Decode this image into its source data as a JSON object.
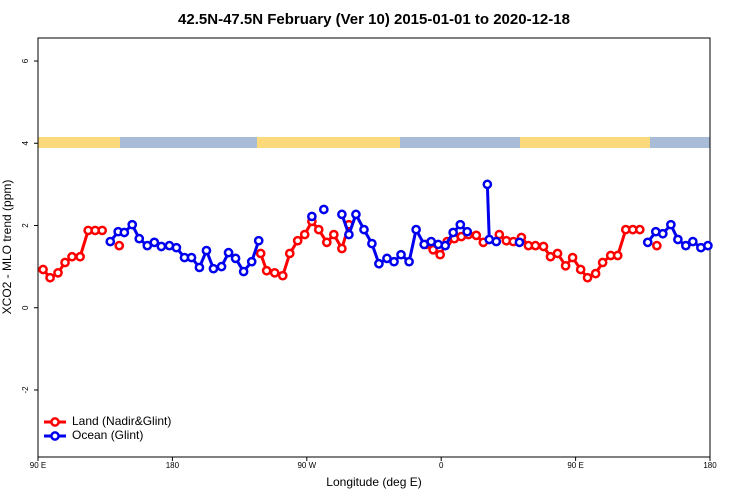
{
  "chart_data": {
    "type": "line",
    "title": "42.5N-47.5N February (Ver 10)   2015-01-01 to 2020-12-18",
    "x_label": "Longitude (deg E)",
    "y_label": "XCO2 - MLO trend (ppm)",
    "xlim": [
      90,
      540
    ],
    "xticks": [
      {
        "value": 90,
        "label": "90 E"
      },
      {
        "value": 180,
        "label": "180"
      },
      {
        "value": 270,
        "label": "90 W"
      },
      {
        "value": 360,
        "label": "0"
      },
      {
        "value": 450,
        "label": "90 E"
      },
      {
        "value": 540,
        "label": "180"
      }
    ],
    "ylim": [
      -3.63,
      6.56
    ],
    "yticks": [
      -2,
      0,
      2,
      4,
      6
    ],
    "legend": "bottom-left",
    "series": [
      {
        "name": "Land (Nadir&Glint)",
        "color": "#ff0000",
        "x": [
          93.4,
          98.1,
          103.4,
          108.1,
          112.8,
          118.2,
          123.6,
          128.3,
          133.0,
          null,
          144.4,
          null,
          239.1,
          243.1,
          248.5,
          253.9,
          258.6,
          263.9,
          268.6,
          273.4,
          278.0,
          283.4,
          288.1,
          293.5,
          298.2,
          null,
          349.9,
          354.6,
          359.3,
          364.0,
          368.8,
          373.5,
          378.2,
          383.5,
          388.2,
          null,
          398.9,
          403.6,
          408.3,
          413.7,
          418.4,
          423.1,
          428.5,
          433.2,
          437.9,
          443.3,
          448.0,
          453.4,
          458.0,
          463.4,
          468.1,
          473.5,
          478.2,
          483.6,
          488.3,
          493.0,
          null,
          504.4
        ],
        "values": [
          0.93,
          0.73,
          0.85,
          1.1,
          1.24,
          1.24,
          1.88,
          1.88,
          1.88,
          null,
          1.51,
          null,
          1.32,
          0.9,
          0.85,
          0.78,
          1.32,
          1.63,
          1.78,
          2.1,
          1.9,
          1.59,
          1.78,
          1.44,
          2.02,
          null,
          1.54,
          1.41,
          1.29,
          1.61,
          1.68,
          1.73,
          1.78,
          1.76,
          1.59,
          null,
          1.78,
          1.63,
          1.61,
          1.71,
          1.51,
          1.51,
          1.49,
          1.24,
          1.32,
          1.02,
          1.22,
          0.93,
          0.73,
          0.83,
          1.1,
          1.27,
          1.27,
          1.9,
          1.9,
          1.9,
          null,
          1.51
        ]
      },
      {
        "name": "Ocean (Glint)",
        "color": "#0000ee",
        "x": [
          138.4,
          143.7,
          147.8,
          153.1,
          157.8,
          163.2,
          167.9,
          172.6,
          178.0,
          182.7,
          188.1,
          192.8,
          198.1,
          202.8,
          207.5,
          212.9,
          217.6,
          222.3,
          227.7,
          233.1,
          237.8,
          null,
          273.4,
          null,
          281.4,
          null,
          293.5,
          298.2,
          302.9,
          308.3,
          313.6,
          318.3,
          323.7,
          328.4,
          333.1,
          338.5,
          343.2,
          348.6,
          353.3,
          358.0,
          362.7,
          368.0,
          372.8,
          377.4,
          null,
          390.9,
          392.2,
          396.9,
          null,
          412.4,
          null,
          498.3,
          503.7,
          508.4,
          513.8,
          518.5,
          523.8,
          528.5,
          533.9,
          538.6
        ],
        "values": [
          1.61,
          1.85,
          1.83,
          2.02,
          1.68,
          1.51,
          1.59,
          1.49,
          1.51,
          1.46,
          1.22,
          1.22,
          0.98,
          1.39,
          0.95,
          1.0,
          1.34,
          1.2,
          0.88,
          1.12,
          1.63,
          null,
          2.22,
          null,
          2.39,
          null,
          2.27,
          1.78,
          2.27,
          1.9,
          1.56,
          1.07,
          1.2,
          1.12,
          1.29,
          1.12,
          1.9,
          1.54,
          1.61,
          1.54,
          1.51,
          1.83,
          2.02,
          1.85,
          null,
          3.0,
          1.66,
          1.61,
          null,
          1.59,
          null,
          1.59,
          1.85,
          1.8,
          2.02,
          1.66,
          1.51,
          1.61,
          1.46,
          1.51
        ]
      }
    ]
  }
}
